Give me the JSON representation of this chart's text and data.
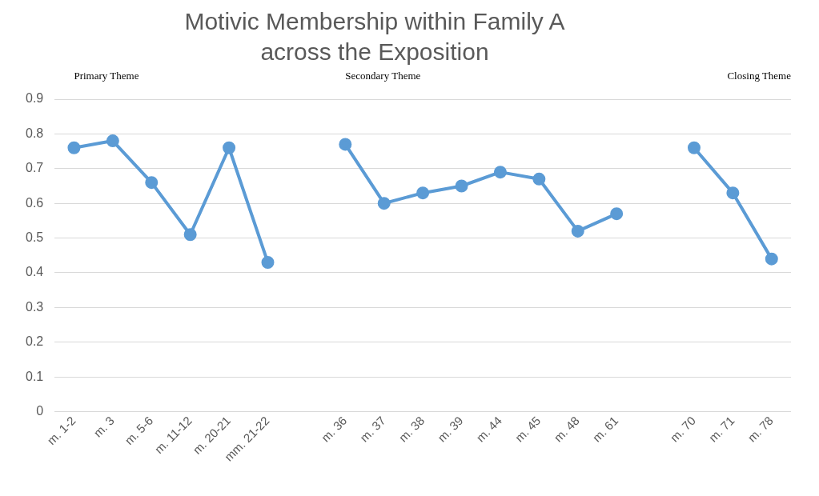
{
  "chart_data": {
    "type": "line",
    "title": "Motivic Membership within Family A across the Exposition",
    "categories": [
      "m. 1-2",
      "m. 3",
      "m. 5-6",
      "m. 11-12",
      "m. 20-21",
      "mm. 21-22",
      null,
      "m. 36",
      "m. 37",
      "m. 38",
      "m. 39",
      "m. 44",
      "m. 45",
      "m. 48",
      "m. 61",
      null,
      "m. 70",
      "m. 71",
      "m. 78"
    ],
    "series": [
      {
        "color": "#5b9bd5",
        "values": [
          0.76,
          0.78,
          0.66,
          0.51,
          0.76,
          0.43,
          null,
          0.77,
          0.6,
          0.63,
          0.65,
          0.69,
          0.67,
          0.52,
          0.57,
          null,
          0.76,
          0.63,
          0.44
        ]
      }
    ],
    "annotations": [
      "Primary Theme",
      "Secondary Theme",
      "Closing Theme"
    ],
    "ylim": [
      0,
      0.9
    ],
    "yticks": [
      0,
      0.1,
      0.2,
      0.3,
      0.4,
      0.5,
      0.6,
      0.7,
      0.8,
      0.9
    ],
    "grid": "y",
    "legend": false,
    "marker": "circle",
    "line_style": "solid"
  }
}
